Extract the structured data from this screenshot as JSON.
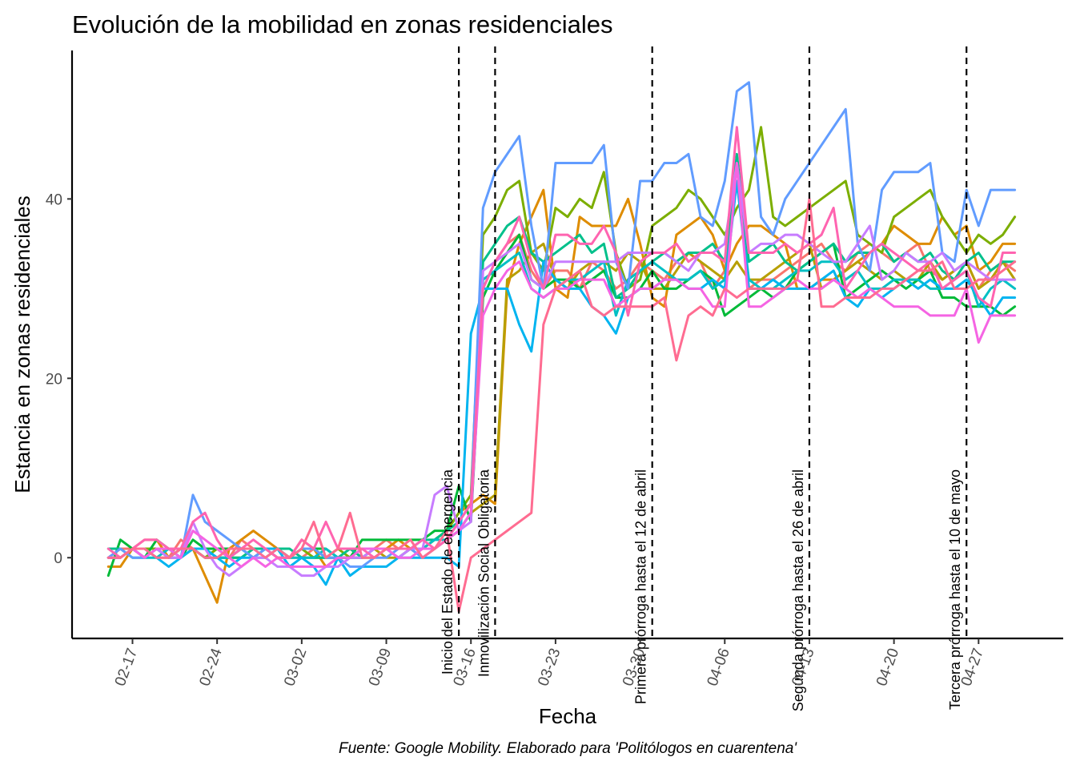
{
  "chart_data": {
    "type": "line",
    "title": "Evolución de la mobilidad en zonas residenciales",
    "xlabel": "Fecha",
    "ylabel": "Estancia en zonas residenciales",
    "caption": "Fuente: Google Mobility. Elaborado para 'Politólogos en cuarentena'",
    "x_start": "2020-02-15",
    "x_end": "2020-04-30",
    "xlim": [
      "2020-02-12",
      "2020-05-04"
    ],
    "ylim": [
      -9,
      57
    ],
    "x_ticks": [
      {
        "date": "2020-02-17",
        "label": "02-17"
      },
      {
        "date": "2020-02-24",
        "label": "02-24"
      },
      {
        "date": "2020-03-02",
        "label": "03-02"
      },
      {
        "date": "2020-03-09",
        "label": "03-09"
      },
      {
        "date": "2020-03-16",
        "label": "03-16"
      },
      {
        "date": "2020-03-23",
        "label": "03-23"
      },
      {
        "date": "2020-03-30",
        "label": "03-30"
      },
      {
        "date": "2020-04-06",
        "label": "04-06"
      },
      {
        "date": "2020-04-13",
        "label": "04-13"
      },
      {
        "date": "2020-04-20",
        "label": "04-20"
      },
      {
        "date": "2020-04-27",
        "label": "04-27"
      }
    ],
    "y_ticks": [
      0,
      20,
      40
    ],
    "events": [
      {
        "date": "2020-03-15",
        "label": "Inicio del Estado de emergencia"
      },
      {
        "date": "2020-03-18",
        "label": "Inmovilización Social Obligatoria"
      },
      {
        "date": "2020-03-31",
        "label": "Primera prórroga hasta el 12 de abril"
      },
      {
        "date": "2020-04-13",
        "label": "Segunda prórroga hasta el 26 de abril"
      },
      {
        "date": "2020-04-26",
        "label": "Tercera prórroga hasta el 10 de mayo"
      }
    ],
    "legend": "none",
    "grid": false,
    "series": [
      {
        "color": "#F8766D",
        "values": [
          0,
          1,
          1,
          0,
          1,
          0,
          2,
          1,
          0,
          1,
          0,
          2,
          1,
          1,
          0,
          0,
          0,
          1,
          0,
          1,
          1,
          0,
          1,
          2,
          1,
          1,
          0,
          1,
          2,
          4,
          6,
          30,
          33,
          35,
          36,
          32,
          30,
          32,
          32,
          30,
          33,
          32,
          30,
          31,
          33,
          32,
          31,
          33,
          34,
          33,
          30,
          32,
          44,
          30,
          31,
          31,
          32,
          33,
          34,
          35,
          33,
          32,
          34,
          35,
          34,
          33,
          34,
          35,
          32,
          31,
          32,
          33,
          30,
          32,
          33,
          32
        ]
      },
      {
        "color": "#DE8C00",
        "values": [
          -1,
          -1,
          1,
          2,
          2,
          0,
          1,
          1,
          -2,
          -5,
          1,
          2,
          3,
          2,
          1,
          0,
          2,
          1,
          -1,
          0,
          0,
          1,
          1,
          1,
          2,
          1,
          1,
          2,
          3,
          5,
          6,
          7,
          6,
          30,
          35,
          38,
          41,
          30,
          29,
          38,
          37,
          37,
          37,
          40,
          35,
          29,
          28,
          36,
          37,
          38,
          36,
          32,
          35,
          37,
          37,
          36,
          35,
          30,
          30,
          31,
          31,
          32,
          33,
          34,
          35,
          37,
          36,
          35,
          35,
          38,
          36,
          37,
          32,
          33,
          35,
          35
        ]
      },
      {
        "color": "#B79F00",
        "values": [
          0,
          0,
          1,
          1,
          0,
          0,
          1,
          1,
          0,
          0,
          0,
          1,
          0,
          1,
          0,
          0,
          1,
          1,
          0,
          0,
          0,
          1,
          1,
          0,
          0,
          1,
          1,
          1,
          2,
          3,
          5,
          6,
          7,
          31,
          32,
          34,
          35,
          31,
          30,
          32,
          33,
          33,
          32,
          34,
          33,
          30,
          30,
          32,
          34,
          33,
          32,
          31,
          33,
          31,
          31,
          32,
          33,
          34,
          35,
          30,
          31,
          32,
          33,
          32,
          31,
          32,
          31,
          31,
          33,
          31,
          32,
          33,
          30,
          31,
          33,
          31
        ]
      },
      {
        "color": "#7CAE00",
        "values": [
          0,
          0,
          1,
          1,
          1,
          0,
          0,
          1,
          0,
          1,
          0,
          0,
          1,
          1,
          1,
          0,
          1,
          0,
          0,
          1,
          0,
          0,
          0,
          1,
          1,
          1,
          1,
          2,
          3,
          5,
          7,
          36,
          38,
          41,
          42,
          34,
          32,
          39,
          38,
          40,
          39,
          43,
          34,
          30,
          31,
          37,
          38,
          39,
          41,
          40,
          38,
          36,
          39,
          41,
          48,
          38,
          37,
          38,
          39,
          40,
          41,
          42,
          36,
          35,
          34,
          38,
          39,
          40,
          41,
          38,
          36,
          34,
          36,
          35,
          36,
          38
        ]
      },
      {
        "color": "#00BA38",
        "values": [
          -2,
          2,
          1,
          0,
          2,
          1,
          0,
          2,
          1,
          1,
          1,
          1,
          1,
          1,
          1,
          0,
          1,
          1,
          1,
          0,
          0,
          2,
          2,
          2,
          2,
          2,
          2,
          3,
          3,
          8,
          4,
          29,
          32,
          34,
          36,
          31,
          30,
          31,
          31,
          30,
          31,
          32,
          29,
          29,
          30,
          32,
          30,
          30,
          31,
          32,
          31,
          27,
          28,
          29,
          30,
          29,
          30,
          32,
          33,
          34,
          35,
          29,
          30,
          31,
          32,
          31,
          30,
          31,
          32,
          29,
          29,
          28,
          28,
          28,
          27,
          28
        ]
      },
      {
        "color": "#00C08B",
        "values": [
          1,
          1,
          0,
          0,
          1,
          0,
          1,
          1,
          1,
          0,
          0,
          0,
          1,
          1,
          1,
          1,
          0,
          0,
          0,
          0,
          1,
          0,
          1,
          1,
          1,
          1,
          2,
          2,
          3,
          4,
          6,
          33,
          35,
          37,
          38,
          34,
          33,
          34,
          35,
          36,
          34,
          35,
          29,
          30,
          32,
          33,
          34,
          33,
          34,
          34,
          35,
          33,
          45,
          33,
          34,
          35,
          33,
          32,
          33,
          34,
          35,
          33,
          34,
          34,
          35,
          33,
          34,
          33,
          34,
          32,
          31,
          33,
          34,
          32,
          33,
          33
        ]
      },
      {
        "color": "#00BFC4",
        "values": [
          0,
          0,
          1,
          0,
          0,
          1,
          0,
          1,
          0,
          0,
          0,
          1,
          0,
          0,
          1,
          0,
          0,
          0,
          1,
          0,
          0,
          0,
          1,
          1,
          0,
          1,
          1,
          2,
          2,
          3,
          5,
          31,
          32,
          33,
          34,
          30,
          29,
          30,
          31,
          31,
          32,
          33,
          27,
          31,
          32,
          33,
          32,
          31,
          31,
          32,
          30,
          31,
          42,
          31,
          30,
          30,
          31,
          32,
          32,
          33,
          33,
          31,
          32,
          30,
          30,
          31,
          31,
          31,
          30,
          30,
          31,
          32,
          28,
          30,
          31,
          30
        ]
      },
      {
        "color": "#00B4F0",
        "values": [
          0,
          0,
          1,
          1,
          0,
          -1,
          0,
          1,
          1,
          0,
          -1,
          0,
          0,
          1,
          1,
          -1,
          0,
          -1,
          -3,
          0,
          -2,
          -1,
          -1,
          -1,
          0,
          0,
          0,
          0,
          0,
          -1,
          25,
          30,
          30,
          30,
          26,
          23,
          33,
          31,
          30,
          30,
          28,
          27,
          25,
          29,
          30,
          30,
          31,
          31,
          30,
          30,
          31,
          30,
          42,
          30,
          30,
          31,
          30,
          30,
          30,
          31,
          32,
          29,
          28,
          30,
          29,
          30,
          31,
          30,
          31,
          30,
          30,
          31,
          29,
          27,
          29,
          29
        ]
      },
      {
        "color": "#619CFF",
        "values": [
          0,
          1,
          0,
          0,
          1,
          0,
          0,
          7,
          4,
          3,
          2,
          1,
          0,
          1,
          0,
          0,
          1,
          1,
          0,
          0,
          -1,
          -1,
          0,
          0,
          1,
          1,
          0,
          1,
          2,
          4,
          6,
          39,
          43,
          45,
          47,
          37,
          30,
          44,
          44,
          44,
          44,
          46,
          33,
          30,
          42,
          42,
          44,
          44,
          45,
          38,
          37,
          42,
          52,
          53,
          38,
          36,
          40,
          42,
          44,
          46,
          48,
          50,
          35,
          32,
          41,
          43,
          43,
          43,
          44,
          34,
          33,
          41,
          37,
          41,
          41,
          41
        ]
      },
      {
        "color": "#C77CFF",
        "values": [
          0,
          0,
          1,
          0,
          1,
          0,
          0,
          4,
          1,
          -1,
          -2,
          -1,
          0,
          0,
          -1,
          -1,
          -2,
          -2,
          -1,
          -1,
          0,
          0,
          1,
          1,
          0,
          1,
          1,
          7,
          8,
          3,
          4,
          32,
          33,
          34,
          35,
          31,
          30,
          33,
          33,
          33,
          33,
          33,
          33,
          34,
          34,
          34,
          34,
          33,
          32,
          34,
          34,
          35,
          44,
          34,
          35,
          35,
          36,
          36,
          35,
          34,
          33,
          33,
          35,
          37,
          31,
          32,
          34,
          33,
          33,
          34,
          32,
          33,
          32,
          31,
          31,
          31
        ]
      },
      {
        "color": "#F564E3",
        "values": [
          0,
          0,
          1,
          0,
          1,
          1,
          0,
          3,
          2,
          1,
          0,
          -1,
          0,
          -1,
          0,
          -1,
          -1,
          -1,
          -1,
          0,
          0,
          1,
          1,
          1,
          0,
          0,
          1,
          1,
          2,
          3,
          5,
          27,
          30,
          32,
          33,
          30,
          29,
          30,
          30,
          31,
          31,
          31,
          28,
          29,
          30,
          30,
          31,
          31,
          30,
          30,
          28,
          28,
          44,
          28,
          28,
          29,
          30,
          31,
          30,
          30,
          31,
          30,
          29,
          30,
          29,
          28,
          28,
          28,
          27,
          27,
          27,
          30,
          24,
          27,
          27,
          27
        ]
      },
      {
        "color": "#FF64B0",
        "values": [
          1,
          0,
          1,
          2,
          2,
          1,
          1,
          4,
          5,
          2,
          0,
          1,
          2,
          1,
          0,
          0,
          2,
          1,
          4,
          1,
          1,
          1,
          0,
          1,
          1,
          1,
          2,
          1,
          2,
          4,
          6,
          30,
          33,
          35,
          38,
          33,
          30,
          36,
          36,
          35,
          35,
          37,
          34,
          27,
          33,
          34,
          34,
          35,
          33,
          34,
          34,
          33,
          48,
          34,
          34,
          34,
          35,
          34,
          35,
          36,
          39,
          30,
          32,
          34,
          35,
          34,
          33,
          32,
          33,
          30,
          31,
          32,
          29,
          28,
          34,
          34
        ]
      },
      {
        "color": "#FF6C91",
        "values": [
          0,
          0,
          1,
          1,
          0,
          0,
          1,
          1,
          0,
          0,
          1,
          1,
          1,
          0,
          1,
          0,
          1,
          4,
          0,
          1,
          5,
          0,
          0,
          1,
          1,
          2,
          0,
          1,
          3,
          -6,
          0,
          1,
          2,
          3,
          4,
          5,
          26,
          30,
          31,
          32,
          28,
          27,
          28,
          28,
          28,
          28,
          29,
          22,
          27,
          28,
          27,
          30,
          29,
          30,
          30,
          30,
          30,
          31,
          40,
          28,
          28,
          29,
          29,
          29,
          30,
          30,
          31,
          32,
          32,
          33,
          30,
          30,
          31,
          31,
          32,
          33
        ]
      }
    ]
  }
}
